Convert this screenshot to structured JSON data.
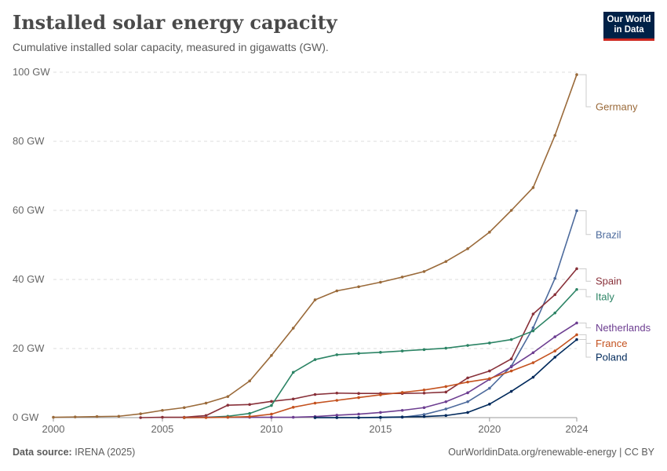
{
  "header": {
    "title": "Installed solar energy capacity",
    "subtitle": "Cumulative installed solar capacity, measured in gigawatts (GW)."
  },
  "logo": {
    "line1": "Our World",
    "line2": "in Data",
    "bg": "#002147",
    "accent": "#ce261e"
  },
  "footer": {
    "source_label": "Data source:",
    "source_value": "IRENA (2025)",
    "right": "OurWorldinData.org/renewable-energy | CC BY"
  },
  "chart_data": {
    "type": "line",
    "title": "Installed solar energy capacity",
    "subtitle": "Cumulative installed solar capacity, measured in gigawatts (GW).",
    "xlabel": "",
    "ylabel": "",
    "xlim": [
      2000,
      2024
    ],
    "ylim": [
      0,
      100
    ],
    "grid": true,
    "legend": "right-inline",
    "y_ticks": [
      {
        "value": 0,
        "label": "0 GW"
      },
      {
        "value": 20,
        "label": "20 GW"
      },
      {
        "value": 40,
        "label": "40 GW"
      },
      {
        "value": 60,
        "label": "60 GW"
      },
      {
        "value": 80,
        "label": "80 GW"
      },
      {
        "value": 100,
        "label": "100 GW"
      }
    ],
    "x_ticks": [
      {
        "value": 2000,
        "label": "2000"
      },
      {
        "value": 2005,
        "label": "2005"
      },
      {
        "value": 2010,
        "label": "2010"
      },
      {
        "value": 2015,
        "label": "2015"
      },
      {
        "value": 2020,
        "label": "2020"
      },
      {
        "value": 2024,
        "label": "2024"
      }
    ],
    "series": [
      {
        "name": "Germany",
        "color": "#9a6a3a",
        "x": [
          2000,
          2001,
          2002,
          2003,
          2004,
          2005,
          2006,
          2007,
          2008,
          2009,
          2010,
          2011,
          2012,
          2013,
          2014,
          2015,
          2016,
          2017,
          2018,
          2019,
          2020,
          2021,
          2022,
          2023,
          2024
        ],
        "values": [
          0.1,
          0.2,
          0.3,
          0.4,
          1.1,
          2.1,
          2.9,
          4.2,
          6.1,
          10.6,
          18.0,
          25.9,
          34.1,
          36.7,
          37.9,
          39.2,
          40.7,
          42.3,
          45.2,
          48.9,
          53.7,
          60.0,
          66.6,
          81.7,
          99.3
        ]
      },
      {
        "name": "Brazil",
        "color": "#4c6a9c",
        "x": [
          2012,
          2013,
          2014,
          2015,
          2016,
          2017,
          2018,
          2019,
          2020,
          2021,
          2022,
          2023,
          2024
        ],
        "values": [
          0.0,
          0.0,
          0.0,
          0.0,
          0.1,
          0.9,
          2.5,
          4.6,
          8.5,
          14.9,
          26.0,
          40.3,
          59.9
        ]
      },
      {
        "name": "Spain",
        "color": "#883039",
        "x": [
          2004,
          2005,
          2006,
          2007,
          2008,
          2009,
          2010,
          2011,
          2012,
          2013,
          2014,
          2015,
          2016,
          2017,
          2018,
          2019,
          2020,
          2021,
          2022,
          2023,
          2024
        ],
        "values": [
          0.0,
          0.1,
          0.1,
          0.6,
          3.6,
          3.8,
          4.7,
          5.4,
          6.7,
          7.1,
          7.0,
          7.0,
          7.0,
          7.1,
          7.4,
          11.5,
          13.5,
          17.0,
          30.0,
          35.6,
          43.1
        ]
      },
      {
        "name": "Italy",
        "color": "#2c8465",
        "x": [
          2006,
          2007,
          2008,
          2009,
          2010,
          2011,
          2012,
          2013,
          2014,
          2015,
          2016,
          2017,
          2018,
          2019,
          2020,
          2021,
          2022,
          2023,
          2024
        ],
        "values": [
          0.0,
          0.1,
          0.4,
          1.2,
          3.5,
          13.1,
          16.8,
          18.2,
          18.6,
          18.9,
          19.3,
          19.7,
          20.1,
          20.9,
          21.6,
          22.6,
          25.1,
          30.3,
          37.1
        ]
      },
      {
        "name": "Netherlands",
        "color": "#6d3e91",
        "x": [
          2006,
          2007,
          2008,
          2009,
          2010,
          2011,
          2012,
          2013,
          2014,
          2015,
          2016,
          2017,
          2018,
          2019,
          2020,
          2021,
          2022,
          2023,
          2024
        ],
        "values": [
          0.0,
          0.1,
          0.1,
          0.1,
          0.1,
          0.1,
          0.3,
          0.7,
          1.0,
          1.5,
          2.1,
          2.9,
          4.6,
          7.2,
          11.1,
          14.7,
          18.8,
          23.4,
          27.4
        ]
      },
      {
        "name": "France",
        "color": "#c4521f",
        "x": [
          2006,
          2007,
          2008,
          2009,
          2010,
          2011,
          2012,
          2013,
          2014,
          2015,
          2016,
          2017,
          2018,
          2019,
          2020,
          2021,
          2022,
          2023,
          2024
        ],
        "values": [
          0.0,
          0.0,
          0.1,
          0.3,
          1.0,
          3.0,
          4.2,
          5.0,
          5.8,
          6.6,
          7.3,
          8.0,
          9.0,
          10.3,
          11.3,
          13.5,
          15.9,
          19.3,
          24.0
        ]
      },
      {
        "name": "Poland",
        "color": "#00295b",
        "x": [
          2012,
          2013,
          2014,
          2015,
          2016,
          2017,
          2018,
          2019,
          2020,
          2021,
          2022,
          2023,
          2024
        ],
        "values": [
          0.0,
          0.0,
          0.0,
          0.1,
          0.2,
          0.3,
          0.6,
          1.5,
          3.9,
          7.6,
          11.7,
          17.5,
          22.6
        ]
      }
    ],
    "label_positions_gw": {
      "Germany": 90,
      "Brazil": 53,
      "Spain": 39.5,
      "Italy": 35,
      "Netherlands": 26,
      "France": 21.5,
      "Poland": 17.5
    }
  }
}
